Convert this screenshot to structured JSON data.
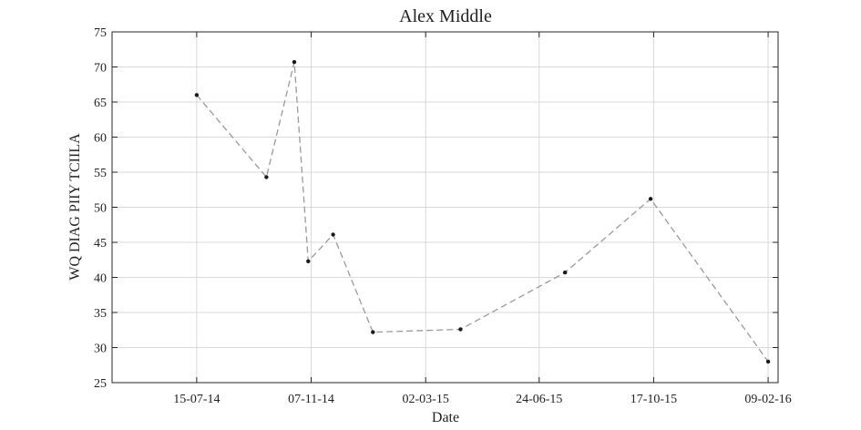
{
  "chart_data": {
    "type": "line",
    "title": "Alex Middle",
    "xlabel": "Date",
    "ylabel": "WQ DIAG PIIY TCIILA",
    "x_ticks": [
      "15-07-14",
      "07-11-14",
      "02-03-15",
      "24-06-15",
      "17-10-15",
      "09-02-16"
    ],
    "y_ticks": [
      25,
      30,
      35,
      40,
      45,
      50,
      55,
      60,
      65,
      70,
      75
    ],
    "ylim": [
      25,
      75
    ],
    "xlim": [
      "2014-04-21",
      "2016-02-19"
    ],
    "grid": true,
    "series": [
      {
        "x": [
          "2014-07-15",
          "2014-09-23",
          "2014-10-21",
          "2014-11-04",
          "2014-11-29",
          "2015-01-08",
          "2015-04-06",
          "2015-07-20",
          "2015-10-14",
          "2016-02-09"
        ],
        "y": [
          66.0,
          54.3,
          70.7,
          42.3,
          46.1,
          32.2,
          32.6,
          40.7,
          51.2,
          28.0
        ],
        "color": "#9a9a9a",
        "marker_color": "#1a1a1a"
      }
    ]
  }
}
